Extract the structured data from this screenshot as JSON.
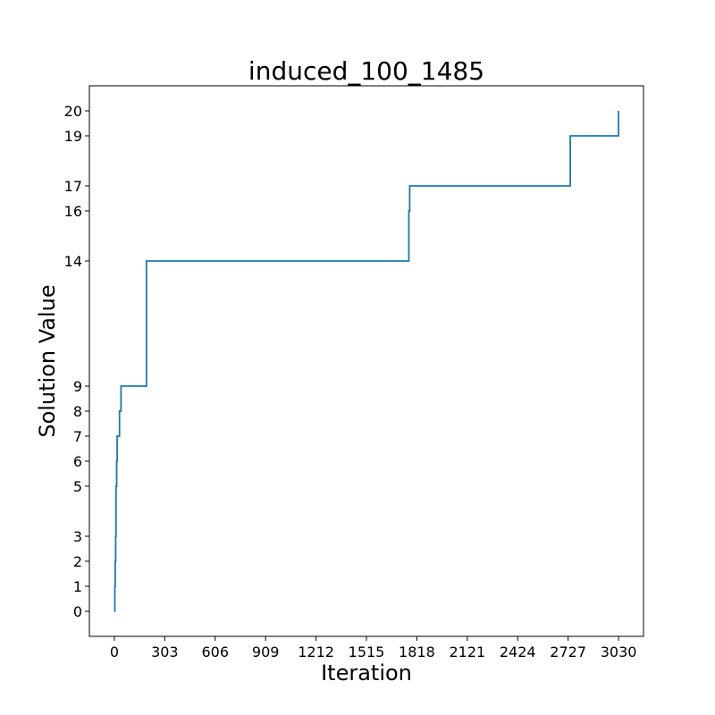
{
  "chart_data": {
    "type": "line",
    "title": "induced_100_1485",
    "xlabel": "Iteration",
    "ylabel": "Solution Value",
    "xlim": [
      -150,
      3180
    ],
    "ylim": [
      -1,
      21
    ],
    "x_ticks": [
      0,
      303,
      606,
      909,
      1212,
      1515,
      1818,
      2121,
      2424,
      2727,
      3030
    ],
    "x_tick_labels": [
      "0",
      "303",
      "606",
      "909",
      "1212",
      "1515",
      "1818",
      "2121",
      "2424",
      "2727",
      "3030"
    ],
    "y_ticks": [
      0,
      1,
      2,
      3,
      5,
      6,
      7,
      8,
      9,
      14,
      16,
      17,
      19,
      20
    ],
    "y_tick_labels": [
      "0",
      "1",
      "2",
      "3",
      "5",
      "6",
      "7",
      "8",
      "9",
      "14",
      "16",
      "17",
      "19",
      "20"
    ],
    "grid": false,
    "series": [
      {
        "color": "#1f77b4",
        "step": "post",
        "x": [
          0,
          3,
          5,
          8,
          10,
          14,
          17,
          28,
          31,
          40,
          193,
          1770,
          1775,
          2740,
          3020,
          3030
        ],
        "y": [
          0,
          1,
          2,
          3,
          5,
          6,
          7,
          7,
          8,
          9,
          14,
          16,
          17,
          19,
          19,
          20
        ]
      }
    ]
  }
}
